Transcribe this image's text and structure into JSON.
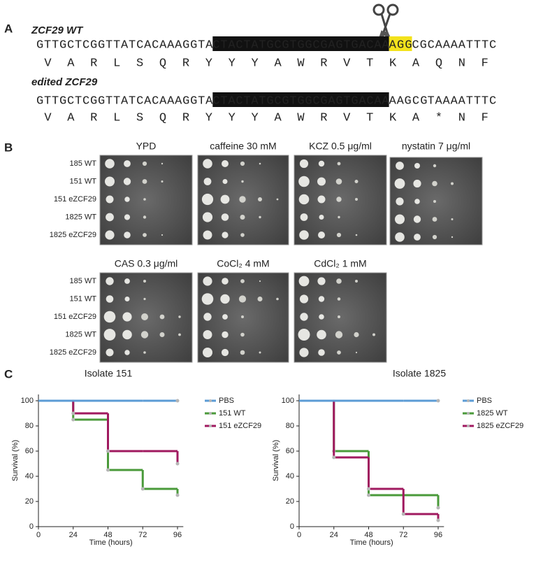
{
  "panel_a": {
    "label": "A",
    "wt": {
      "title": "ZCF29 WT",
      "segments": [
        {
          "text": "GTTGCTCGGTTATCACAAAGGTA",
          "style": "plain"
        },
        {
          "text": "CTACTATGCGTGGCGAGTGACAA",
          "style": "guide"
        },
        {
          "text": "AGG",
          "style": "pam"
        },
        {
          "text": "CGCAAAATTTC",
          "style": "plain"
        }
      ],
      "aa": [
        "V",
        "A",
        "R",
        "L",
        "S",
        "Q",
        "R",
        "Y",
        "Y",
        "Y",
        "A",
        "W",
        "R",
        "V",
        "T",
        "K",
        "A",
        "Q",
        "N",
        "F"
      ]
    },
    "edited": {
      "title": "edited ZCF29",
      "segments": [
        {
          "text": "GTTGCTCGGTTATCACAAAGGTA",
          "style": "plain"
        },
        {
          "text": "CTACTATGCGTGGCGAGTGACAA",
          "style": "guide"
        },
        {
          "text": "A",
          "style": "plain"
        },
        {
          "text": "A",
          "style": "mut"
        },
        {
          "text": "GCG",
          "style": "plain"
        },
        {
          "text": "T",
          "style": "mut"
        },
        {
          "text": "AAAATTTC",
          "style": "plain"
        }
      ],
      "aa": [
        "V",
        "A",
        "R",
        "L",
        "S",
        "Q",
        "R",
        "Y",
        "Y",
        "Y",
        "A",
        "W",
        "R",
        "V",
        "T",
        "K",
        "A",
        {
          "text": "*",
          "style": "mut"
        },
        "N",
        "F"
      ]
    }
  },
  "panel_b": {
    "label": "B",
    "groups": [
      {
        "rows": [
          "185 WT",
          "151 WT",
          "151 eZCF29",
          "1825 WT",
          "1825 eZCF29"
        ],
        "plates": [
          "YPD",
          "caffeine 30 mM",
          "KCZ 0.5 μg/ml",
          "nystatin 7 μg/ml"
        ]
      },
      {
        "rows": [
          "185 WT",
          "151 WT",
          "151 eZCF29",
          "1825 WT",
          "1825 eZCF29"
        ],
        "plates": [
          "CAS 0.3 μg/ml",
          "CoCl₂ 4 mM",
          "CdCl₂ 1 mM"
        ]
      }
    ]
  },
  "panel_c": {
    "label": "C"
  },
  "chart_data": [
    {
      "type": "step",
      "title": "Isolate 151",
      "y_label": "Survival (%)",
      "x_label": "Time (hours)",
      "x": [
        0,
        24,
        48,
        72,
        96
      ],
      "xlim": [
        0,
        100
      ],
      "xticks": [
        0,
        24,
        48,
        72,
        96
      ],
      "ylim": [
        0,
        105
      ],
      "yticks": [
        0,
        20,
        40,
        60,
        80,
        100
      ],
      "legend": "upper right",
      "series": [
        {
          "name": "PBS",
          "color": "#5b9bd5",
          "values": [
            100,
            100,
            100,
            100,
            100
          ]
        },
        {
          "name": "151 WT",
          "color": "#4a9a3a",
          "values": [
            100,
            85,
            45,
            30,
            25
          ]
        },
        {
          "name": "151 eZCF29",
          "color": "#a0195f",
          "values": [
            100,
            90,
            60,
            60,
            50
          ]
        }
      ]
    },
    {
      "type": "step",
      "title": "Isolate 1825",
      "y_label": "Survival (%)",
      "x_label": "Time (hours)",
      "x": [
        0,
        24,
        48,
        72,
        96
      ],
      "xlim": [
        0,
        100
      ],
      "xticks": [
        0,
        24,
        48,
        72,
        96
      ],
      "ylim": [
        0,
        105
      ],
      "yticks": [
        0,
        20,
        40,
        60,
        80,
        100
      ],
      "legend": "upper right",
      "series": [
        {
          "name": "PBS",
          "color": "#5b9bd5",
          "values": [
            100,
            100,
            100,
            100,
            100
          ]
        },
        {
          "name": "1825 WT",
          "color": "#4a9a3a",
          "values": [
            100,
            60,
            25,
            25,
            15
          ]
        },
        {
          "name": "1825 eZCF29",
          "color": "#a0195f",
          "values": [
            100,
            55,
            30,
            10,
            5
          ]
        }
      ]
    }
  ]
}
